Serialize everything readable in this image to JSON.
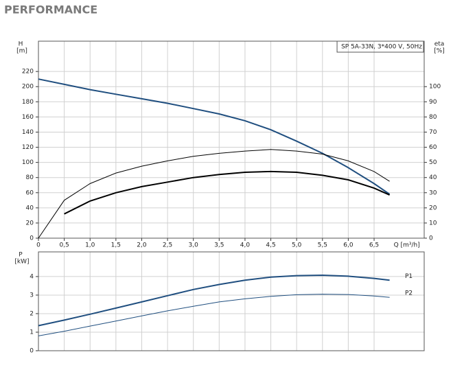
{
  "header": {
    "title": "PERFORMANCE"
  },
  "chart_data": [
    {
      "type": "line",
      "legend_box": "SP 5A-33N, 3*400 V, 50Hz",
      "ylabel": "H",
      "yunit": "[m]",
      "y2label": "eta",
      "y2unit": "[%]",
      "xlabel": "Q [m³/h]",
      "x": [
        0,
        0.5,
        1.0,
        1.5,
        2.0,
        2.5,
        3.0,
        3.5,
        4.0,
        4.5,
        5.0,
        5.5,
        6.0,
        6.5,
        6.8
      ],
      "xlim": [
        0,
        7.47
      ],
      "xticks": [
        0,
        {
          "value": 0.5,
          "label": "0,5"
        },
        {
          "value": 1.0,
          "label": "1,0"
        },
        {
          "value": 1.5,
          "label": "1,5"
        },
        {
          "value": 2.0,
          "label": "2,0"
        },
        {
          "value": 2.5,
          "label": "2,5"
        },
        {
          "value": 3.0,
          "label": "3,0"
        },
        {
          "value": 3.5,
          "label": "3,5"
        },
        {
          "value": 4.0,
          "label": "4,0"
        },
        {
          "value": 4.5,
          "label": "4,5"
        },
        {
          "value": 5.0,
          "label": "5,0"
        },
        {
          "value": 5.5,
          "label": "5,5"
        },
        {
          "value": 6.0,
          "label": "6,0"
        },
        {
          "value": 6.5,
          "label": "6,5"
        }
      ],
      "ylim": [
        0,
        260
      ],
      "yticks": [
        0,
        20,
        40,
        60,
        80,
        100,
        120,
        140,
        160,
        180,
        200,
        220
      ],
      "y2lim": [
        0,
        130
      ],
      "y2ticks": [
        0,
        10,
        20,
        30,
        40,
        50,
        60,
        70,
        80,
        90,
        100
      ],
      "grid": true,
      "series": [
        {
          "color": "#1f4e7f",
          "width": 2,
          "values": [
            210,
            203,
            196,
            190,
            184,
            178,
            171,
            164,
            155,
            143,
            128,
            112,
            93,
            72,
            58
          ]
        },
        {
          "color": "#000000",
          "width": 1,
          "axis": "y2",
          "values": [
            0,
            25,
            36,
            43,
            47.5,
            51,
            54,
            56,
            57.5,
            58.5,
            57.5,
            55.5,
            51,
            44,
            37.5
          ]
        },
        {
          "color": "#000000",
          "width": 2,
          "axis": "y2",
          "values": [
            null,
            16,
            24.5,
            30,
            34,
            37,
            40,
            42,
            43.5,
            44,
            43.5,
            41.5,
            38.5,
            33,
            28.5
          ]
        }
      ]
    },
    {
      "type": "line",
      "ylabel": "P",
      "yunit": "[kW]",
      "x": [
        0,
        0.5,
        1.0,
        1.5,
        2.0,
        2.5,
        3.0,
        3.5,
        4.0,
        4.5,
        5.0,
        5.5,
        6.0,
        6.5,
        6.8
      ],
      "xlim": [
        0,
        7.47
      ],
      "ylim": [
        0,
        5.33
      ],
      "yticks": [
        0,
        1,
        2,
        3,
        4
      ],
      "grid": true,
      "series": [
        {
          "name": "P1",
          "color": "#1f4e7f",
          "width": 2,
          "values": [
            1.35,
            1.65,
            1.97,
            2.3,
            2.63,
            2.97,
            3.3,
            3.57,
            3.8,
            3.97,
            4.05,
            4.07,
            4.02,
            3.9,
            3.8
          ]
        },
        {
          "name": "P2",
          "color": "#1f4e7f",
          "width": 1,
          "values": [
            0.8,
            1.05,
            1.33,
            1.6,
            1.88,
            2.15,
            2.4,
            2.63,
            2.8,
            2.93,
            3.02,
            3.05,
            3.03,
            2.95,
            2.88
          ]
        }
      ]
    }
  ]
}
